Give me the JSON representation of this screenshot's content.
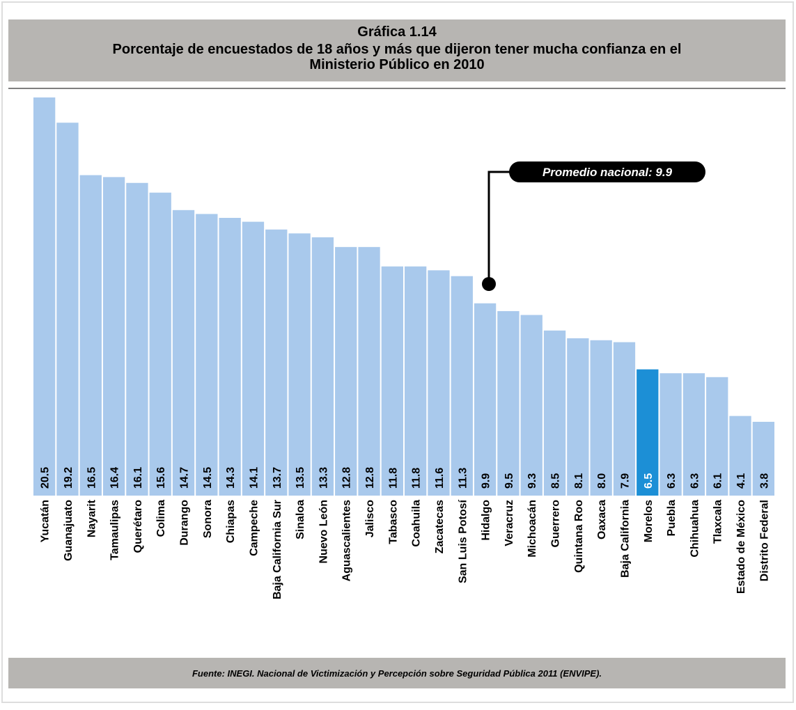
{
  "chart_data": {
    "type": "bar",
    "title": "Gráfica 1.14",
    "subtitle": "Porcentaje de encuestados de 18 años y más que dijeron tener mucha confianza en el Ministerio Público en 2010",
    "categories": [
      "Yucatán",
      "Guanajuato",
      "Nayarit",
      "Tamaulipas",
      "Querétaro",
      "Colima",
      "Durango",
      "Sonora",
      "Chiapas",
      "Campeche",
      "Baja California Sur",
      "Sinaloa",
      "Nuevo León",
      "Aguascalientes",
      "Jalisco",
      "Tabasco",
      "Coahuila",
      "Zacatecas",
      "San Luis Potosí",
      "Hidalgo",
      "Veracruz",
      "Michoacán",
      "Guerrero",
      "Quintana Roo",
      "Oaxaca",
      "Baja California",
      "Morelos",
      "Puebla",
      "Chihuahua",
      "Tlaxcala",
      "Estado de México",
      "Distrito Federal"
    ],
    "values": [
      20.5,
      19.2,
      16.5,
      16.4,
      16.1,
      15.6,
      14.7,
      14.5,
      14.3,
      14.1,
      13.7,
      13.5,
      13.3,
      12.8,
      12.8,
      11.8,
      11.8,
      11.6,
      11.3,
      9.9,
      9.5,
      9.3,
      8.5,
      8.1,
      8.0,
      7.9,
      6.5,
      6.3,
      6.3,
      6.1,
      4.1,
      3.8
    ],
    "value_labels": [
      "20.5",
      "19.2",
      "16.5",
      "16.4",
      "16.1",
      "15.6",
      "14.7",
      "14.5",
      "14.3",
      "14.1",
      "13.7",
      "13.5",
      "13.3",
      "12.8",
      "12.8",
      "11.8",
      "11.8",
      "11.6",
      "11.3",
      "9.9",
      "9.5",
      "9.3",
      "8.5",
      "8.1",
      "8.0",
      "7.9",
      "6.5",
      "6.3",
      "6.3",
      "6.1",
      "4.1",
      "3.8"
    ],
    "colors": [
      "#a9c9ec",
      "#a9c9ec",
      "#a9c9ec",
      "#a9c9ec",
      "#a9c9ec",
      "#a9c9ec",
      "#a9c9ec",
      "#a9c9ec",
      "#a9c9ec",
      "#a9c9ec",
      "#a9c9ec",
      "#a9c9ec",
      "#a9c9ec",
      "#a9c9ec",
      "#a9c9ec",
      "#a9c9ec",
      "#a9c9ec",
      "#a9c9ec",
      "#a9c9ec",
      "#a9c9ec",
      "#a9c9ec",
      "#a9c9ec",
      "#a9c9ec",
      "#a9c9ec",
      "#a9c9ec",
      "#a9c9ec",
      "#1c8fd6",
      "#a9c9ec",
      "#a9c9ec",
      "#a9c9ec",
      "#a9c9ec",
      "#a9c9ec"
    ],
    "annotation": "Promedio nacional: 9.9",
    "source": "Fuente: INEGI.  Nacional de Victimización y Percepción sobre Seguridad Pública 2011 (ENVIPE)."
  }
}
